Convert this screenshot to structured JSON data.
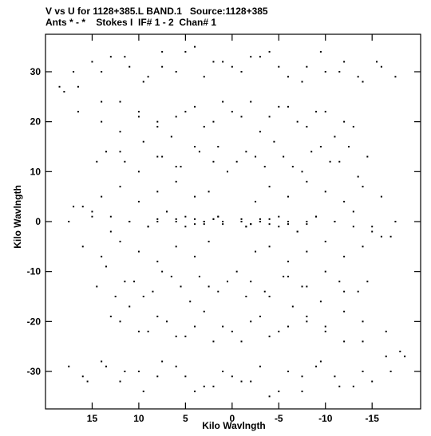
{
  "chart_data": {
    "type": "scatter",
    "title": "V vs U for 1128+385.L BAND.1   Source:1128+385",
    "subtitle": "Ants * - *    Stokes I  IF# 1 - 2  Chan# 1",
    "xlabel": "Kilo Wavlngth",
    "ylabel": "Kilo Wavlngth",
    "xlim": [
      20.0,
      -20.2
    ],
    "ylim": [
      -37.5,
      37.5
    ],
    "xticks": [
      15,
      10,
      5,
      0,
      -5,
      -10,
      -15
    ],
    "xtick_labels": [
      "15",
      "10",
      "5",
      "0",
      "-5",
      "-10",
      "-15"
    ],
    "yticks": [
      30,
      20,
      10,
      0,
      -10,
      -20,
      -30
    ],
    "ytick_labels": [
      "30",
      "20",
      "10",
      "0",
      "-10",
      "-20",
      "-30"
    ],
    "grid": false,
    "marker_color": "#000000",
    "series": [
      {
        "x": [
          18.5,
          17.0,
          15.0,
          13.0,
          11.0,
          9.0,
          7.5,
          6.0,
          4.0,
          2.0,
          0.0,
          -2.0,
          -4.0,
          -6.0,
          -8.0,
          -10.0,
          -12.0,
          -14.0,
          -16.0,
          -17.5,
          16.5,
          14.0,
          12.0,
          10.0,
          8.0,
          6.5,
          5.0,
          3.0,
          1.0,
          -1.0,
          -3.0,
          -5.0,
          -7.0,
          -9.0,
          -11.0,
          -13.0,
          14.5,
          12.0,
          10.0,
          8.0,
          6.0,
          4.0,
          2.0,
          0.5,
          -1.5,
          -3.5,
          -5.5,
          -7.5,
          -9.5,
          -11.5,
          -13.5,
          17.0,
          15.0,
          13.0,
          11.0,
          9.0,
          7.0,
          5.0,
          3.0,
          1.5,
          -1.5,
          -3.0,
          -5.0,
          -7.0,
          -9.0,
          -11.0,
          -13.0,
          -15.0,
          -17.5,
          16.0,
          14.0,
          12.0,
          10.0,
          8.0,
          6.0,
          4.0,
          2.5,
          -2.5,
          -4.0,
          -6.0,
          -8.0,
          -10.0,
          -12.0,
          -14.0,
          -16.0,
          14.5,
          12.5,
          10.5,
          8.5,
          6.5,
          4.5,
          2.5,
          0.5,
          -1.5,
          -3.5,
          -5.5,
          -7.5,
          -9.5,
          -11.5,
          -13.5,
          12.0,
          10.0,
          8.0,
          6.0,
          4.0,
          2.0,
          0.0,
          -2.0,
          -4.0,
          -6.0,
          -8.0,
          -10.0,
          -12.0,
          -14.0,
          15.5,
          13.5,
          11.5,
          9.5,
          7.5,
          5.0,
          3.0,
          1.0,
          -1.0,
          -3.0,
          -5.0,
          -7.5,
          -9.5,
          -11.5,
          -14.0,
          -16.5,
          -18.0,
          4.0,
          3.0,
          2.0,
          1.0,
          -1.0,
          -2.0,
          -3.0,
          -4.0,
          6.0,
          -6.0,
          8.0,
          -8.0
        ],
        "y": [
          27,
          30,
          32,
          33,
          31,
          29,
          34,
          30,
          35,
          32,
          31,
          33,
          34,
          29,
          31,
          30,
          32,
          28,
          31,
          29,
          22,
          24,
          18,
          21,
          20,
          17,
          22,
          19,
          24,
          21,
          18,
          23,
          20,
          22,
          17,
          19,
          12,
          14,
          10,
          13,
          11,
          15,
          12,
          10,
          14,
          11,
          13,
          10,
          15,
          12,
          9,
          3,
          2,
          1,
          0,
          -1,
          2,
          1,
          0,
          1,
          -1,
          0,
          1,
          -2,
          1,
          0,
          2,
          -1,
          0,
          -5,
          -7,
          -4,
          -6,
          -8,
          -5,
          -7,
          -4,
          -6,
          -5,
          -8,
          -6,
          -4,
          -7,
          -5,
          -3,
          -13,
          -15,
          -12,
          -14,
          -11,
          -16,
          -13,
          -12,
          -15,
          -14,
          -11,
          -13,
          -16,
          -12,
          -14,
          -20,
          -22,
          -19,
          -23,
          -21,
          -24,
          -22,
          -20,
          -23,
          -21,
          -19,
          -22,
          -24,
          -20,
          -32,
          -29,
          -30,
          -34,
          -28,
          -31,
          -33,
          -30,
          -32,
          -29,
          -34,
          -31,
          -28,
          -33,
          -30,
          -27,
          -26,
          0.5,
          -0.5,
          0.5,
          0,
          0.5,
          -0.5,
          0,
          0.5,
          0,
          -0.5,
          0.5,
          0
        ]
      }
    ]
  }
}
